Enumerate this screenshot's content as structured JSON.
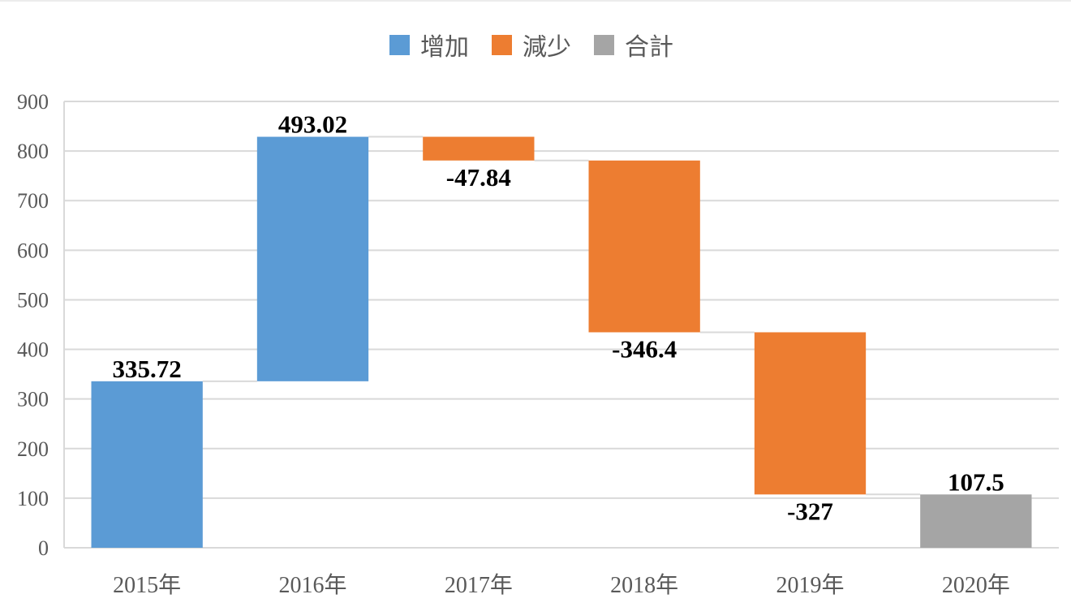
{
  "chart_data": {
    "type": "waterfall",
    "categories": [
      "2015年",
      "2016年",
      "2017年",
      "2018年",
      "2019年",
      "2020年"
    ],
    "values": [
      335.72,
      493.02,
      -47.84,
      -346.4,
      -327,
      107.5
    ],
    "labels": [
      "335.72",
      "493.02",
      "-47.84",
      "-346.4",
      "-327",
      "107.5"
    ],
    "kinds": [
      "increase",
      "increase",
      "decrease",
      "decrease",
      "decrease",
      "total"
    ],
    "legend": [
      {
        "key": "increase",
        "name": "增加",
        "color": "#5B9BD5"
      },
      {
        "key": "decrease",
        "name": "減少",
        "color": "#ED7D31"
      },
      {
        "key": "total",
        "name": "合計",
        "color": "#A5A5A5"
      }
    ],
    "yticks": [
      "0",
      "100",
      "200",
      "300",
      "400",
      "500",
      "600",
      "700",
      "800",
      "900"
    ],
    "ylim": [
      0,
      900
    ],
    "grid": true,
    "legend_position": "top-center",
    "title": "",
    "xlabel": "",
    "ylabel": ""
  }
}
